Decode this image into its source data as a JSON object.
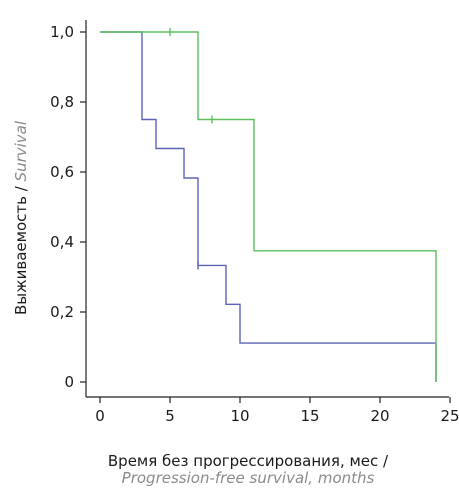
{
  "chart_data": {
    "type": "line",
    "step": true,
    "xlabel_ru": "Время без прогрессирования, мес /",
    "xlabel_en": "Progression-free survival, months",
    "ylabel_ru": "Выживаемость / ",
    "ylabel_en": "Survival",
    "xlim": [
      0,
      25
    ],
    "ylim": [
      0,
      1.0
    ],
    "x_ticks": [
      0,
      5,
      10,
      15,
      20,
      25
    ],
    "x_tick_labels": [
      "0",
      "5",
      "10",
      "15",
      "20",
      "25"
    ],
    "y_ticks": [
      0,
      0.2,
      0.4,
      0.6,
      0.8,
      1.0
    ],
    "y_tick_labels": [
      "0",
      "0,2",
      "0,4",
      "0,6",
      "0,8",
      "1,0"
    ],
    "grid": false,
    "series": [
      {
        "color": "#5b63b8",
        "points": [
          [
            0,
            1.0
          ],
          [
            3,
            1.0
          ],
          [
            3,
            0.75
          ],
          [
            4,
            0.75
          ],
          [
            4,
            0.667
          ],
          [
            6,
            0.667
          ],
          [
            6,
            0.583
          ],
          [
            7,
            0.583
          ],
          [
            7,
            0.333
          ],
          [
            9,
            0.333
          ],
          [
            9,
            0.222
          ],
          [
            10,
            0.222
          ],
          [
            10,
            0.111
          ],
          [
            24,
            0.111
          ],
          [
            24,
            0.0
          ]
        ],
        "censored": [
          [
            7,
            0.333
          ]
        ]
      },
      {
        "color": "#5cbf5c",
        "points": [
          [
            0,
            1.0
          ],
          [
            7,
            1.0
          ],
          [
            7,
            0.75
          ],
          [
            11,
            0.75
          ],
          [
            11,
            0.375
          ],
          [
            24,
            0.375
          ],
          [
            24,
            0.0
          ]
        ],
        "censored": [
          [
            5,
            1.0
          ],
          [
            8,
            0.75
          ]
        ]
      }
    ]
  }
}
